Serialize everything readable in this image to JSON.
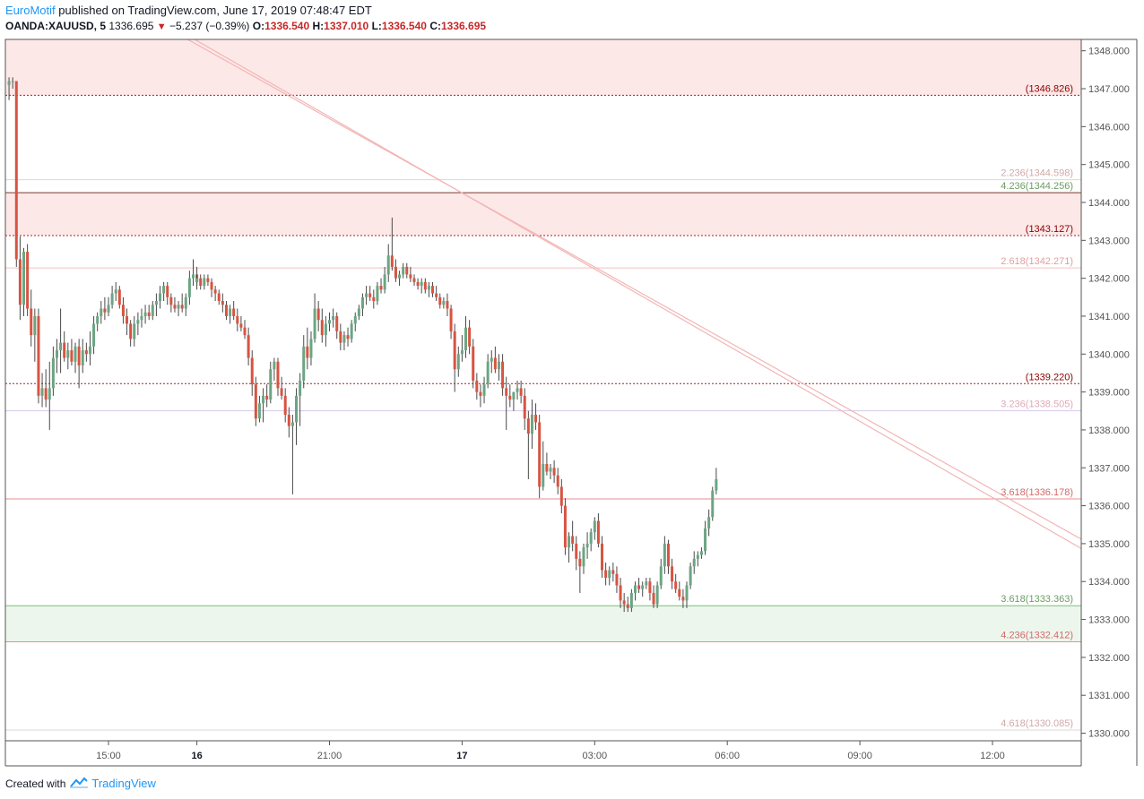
{
  "header": {
    "author": "EuroMotif",
    "published_text": " published on TradingView.com, June 17, 2019 07:48:47 EDT",
    "symbol": "OANDA:XAUUSD, 5",
    "last": "1336.695",
    "change_arrow": "▼",
    "change": "−5.237 (−0.39%)",
    "o_label": "O:",
    "o_value": "1336.540",
    "h_label": "H:",
    "h_value": "1337.010",
    "l_label": "L:",
    "l_value": "1336.540",
    "c_label": "C:",
    "c_value": "1336.695"
  },
  "footer": {
    "created_with": "Created with",
    "brand": "TradingView",
    "logo_icon": "tradingview-cloud-icon"
  },
  "colors": {
    "up": "#6ba583",
    "down": "#d75442",
    "resistance_zone": "#fde8e8",
    "support_zone": "#edf6ec",
    "dark_red": "#8b0000",
    "light_red": "#f2a7a7",
    "green": "#6b9e63",
    "trendline": "#f2b5b5",
    "axis": "#555555"
  },
  "chart_data": {
    "type": "candlestick",
    "instrument": "OANDA:XAUUSD",
    "timeframe": "5",
    "ylim": [
      1329.8,
      1348.3
    ],
    "y_ticks": [
      "1330.000",
      "1331.000",
      "1332.000",
      "1333.000",
      "1334.000",
      "1335.000",
      "1336.000",
      "1337.000",
      "1338.000",
      "1339.000",
      "1340.000",
      "1341.000",
      "1342.000",
      "1343.000",
      "1344.000",
      "1345.000",
      "1346.000",
      "1347.000",
      "1348.000"
    ],
    "x_tick_labels": [
      "15:00",
      "16",
      "21:00",
      "17",
      "03:00",
      "06:00",
      "09:00",
      "12:00"
    ],
    "x_ticks": [
      "2019-06-14 15:00",
      "2019-06-16 18:00",
      "2019-06-16 21:00",
      "2019-06-17 00:00",
      "2019-06-17 03:00",
      "2019-06-17 06:00",
      "2019-06-17 09:00",
      "2019-06-17 12:00"
    ],
    "x_tick_bold": [
      "16",
      "17"
    ],
    "candles_start": "2019-06-14 12:45",
    "candles_interval_min": 5,
    "candles_note": "sessions: Fri 14 Jun 12:45–17:00, Sun 16 Jun 18:00 onward",
    "candles": [
      [
        1347.1,
        1347.3,
        1346.7,
        1347.2
      ],
      [
        1347.2,
        1347.3,
        1347.0,
        1347.2
      ],
      [
        1347.2,
        1347.2,
        1342.3,
        1342.5
      ],
      [
        1342.5,
        1343.1,
        1340.9,
        1341.3
      ],
      [
        1341.3,
        1342.8,
        1341.0,
        1342.7
      ],
      [
        1342.7,
        1342.9,
        1341.0,
        1341.2
      ],
      [
        1341.2,
        1341.7,
        1340.2,
        1340.5
      ],
      [
        1340.5,
        1341.2,
        1339.8,
        1341.0
      ],
      [
        1341.0,
        1341.2,
        1338.7,
        1338.9
      ],
      [
        1338.9,
        1339.5,
        1338.6,
        1339.1
      ],
      [
        1339.1,
        1339.6,
        1338.6,
        1338.8
      ],
      [
        1338.8,
        1339.8,
        1338.0,
        1339.1
      ],
      [
        1339.1,
        1340.2,
        1338.9,
        1339.9
      ],
      [
        1339.9,
        1340.4,
        1339.5,
        1340.1
      ],
      [
        1340.1,
        1341.2,
        1339.5,
        1340.3
      ],
      [
        1340.3,
        1340.6,
        1339.8,
        1339.9
      ],
      [
        1339.9,
        1340.3,
        1339.6,
        1340.1
      ],
      [
        1340.1,
        1340.4,
        1339.7,
        1339.8
      ],
      [
        1339.8,
        1340.3,
        1339.5,
        1340.2
      ],
      [
        1340.2,
        1340.4,
        1339.1,
        1339.7
      ],
      [
        1339.7,
        1340.4,
        1339.5,
        1340.1
      ],
      [
        1340.1,
        1340.3,
        1339.8,
        1340.0
      ],
      [
        1340.0,
        1340.6,
        1339.7,
        1340.2
      ],
      [
        1340.2,
        1341.0,
        1340.0,
        1340.8
      ],
      [
        1340.8,
        1341.1,
        1340.6,
        1341.0
      ],
      [
        1341.0,
        1341.4,
        1340.8,
        1341.2
      ],
      [
        1341.2,
        1341.5,
        1340.9,
        1341.1
      ],
      [
        1341.1,
        1341.5,
        1341.0,
        1341.3
      ],
      [
        1341.3,
        1341.8,
        1341.2,
        1341.6
      ],
      [
        1341.6,
        1341.9,
        1341.4,
        1341.7
      ],
      [
        1341.7,
        1341.8,
        1341.2,
        1341.3
      ],
      [
        1341.3,
        1341.5,
        1340.8,
        1341.0
      ],
      [
        1341.0,
        1341.2,
        1340.5,
        1340.8
      ],
      [
        1340.8,
        1340.9,
        1340.2,
        1340.4
      ],
      [
        1340.4,
        1341.0,
        1340.2,
        1340.8
      ],
      [
        1340.8,
        1341.1,
        1340.5,
        1340.9
      ],
      [
        1340.9,
        1341.2,
        1340.7,
        1341.0
      ],
      [
        1341.0,
        1341.3,
        1340.8,
        1341.1
      ],
      [
        1341.1,
        1341.3,
        1340.9,
        1341.0
      ],
      [
        1341.0,
        1341.4,
        1340.9,
        1341.3
      ],
      [
        1341.3,
        1341.6,
        1341.0,
        1341.4
      ],
      [
        1341.4,
        1341.8,
        1341.2,
        1341.6
      ],
      [
        1341.6,
        1341.9,
        1341.4,
        1341.8
      ],
      [
        1341.8,
        1341.9,
        1341.3,
        1341.5
      ],
      [
        1341.5,
        1341.6,
        1341.1,
        1341.3
      ],
      [
        1341.3,
        1341.5,
        1341.1,
        1341.2
      ],
      [
        1341.2,
        1341.4,
        1341.0,
        1341.3
      ],
      [
        1341.3,
        1341.6,
        1341.1,
        1341.2
      ],
      [
        1341.2,
        1341.6,
        1341.0,
        1341.5
      ],
      [
        1341.5,
        1342.2,
        1341.3,
        1342.0
      ],
      [
        1342.0,
        1342.5,
        1341.8,
        1342.1
      ],
      [
        1342.1,
        1342.3,
        1341.7,
        1341.9
      ],
      [
        1341.9,
        1342.1,
        1341.8,
        1342.0
      ],
      [
        1342.0,
        1342.1,
        1341.7,
        1341.8
      ],
      [
        1341.8,
        1342.1,
        1341.7,
        1342.0
      ],
      [
        1342.0,
        1342.1,
        1341.8,
        1341.9
      ],
      [
        1341.9,
        1342.0,
        1341.5,
        1341.7
      ],
      [
        1341.7,
        1341.8,
        1341.4,
        1341.6
      ],
      [
        1341.6,
        1341.7,
        1341.3,
        1341.4
      ],
      [
        1341.4,
        1341.6,
        1341.1,
        1341.3
      ],
      [
        1341.3,
        1341.4,
        1340.9,
        1341.0
      ],
      [
        1341.0,
        1341.3,
        1340.8,
        1341.2
      ],
      [
        1341.2,
        1341.4,
        1340.9,
        1341.0
      ],
      [
        1341.0,
        1341.2,
        1340.6,
        1340.8
      ],
      [
        1340.8,
        1341.0,
        1340.6,
        1340.7
      ],
      [
        1340.7,
        1340.9,
        1340.4,
        1340.5
      ],
      [
        1340.5,
        1340.7,
        1339.7,
        1339.9
      ],
      [
        1339.9,
        1340.1,
        1338.9,
        1339.2
      ],
      [
        1339.2,
        1339.4,
        1338.1,
        1338.3
      ],
      [
        1338.3,
        1338.9,
        1338.2,
        1338.7
      ],
      [
        1338.7,
        1339.1,
        1338.2,
        1338.9
      ],
      [
        1338.9,
        1339.2,
        1338.6,
        1338.8
      ],
      [
        1338.8,
        1339.8,
        1338.7,
        1339.6
      ],
      [
        1339.6,
        1339.9,
        1339.3,
        1339.8
      ],
      [
        1339.8,
        1339.9,
        1338.9,
        1339.1
      ],
      [
        1339.1,
        1339.4,
        1338.8,
        1338.9
      ],
      [
        1338.9,
        1339.1,
        1338.2,
        1338.4
      ],
      [
        1338.4,
        1338.6,
        1337.8,
        1338.1
      ],
      [
        1338.1,
        1338.4,
        1336.3,
        1338.2
      ],
      [
        1338.2,
        1339.1,
        1337.6,
        1338.9
      ],
      [
        1338.9,
        1339.5,
        1338.1,
        1339.3
      ],
      [
        1339.3,
        1340.5,
        1339.1,
        1340.2
      ],
      [
        1340.2,
        1340.7,
        1339.6,
        1339.9
      ],
      [
        1339.9,
        1340.6,
        1339.7,
        1340.4
      ],
      [
        1340.4,
        1341.6,
        1340.3,
        1341.2
      ],
      [
        1341.2,
        1341.4,
        1340.6,
        1340.9
      ],
      [
        1340.9,
        1341.2,
        1340.3,
        1340.5
      ],
      [
        1340.5,
        1341.0,
        1340.2,
        1340.8
      ],
      [
        1340.8,
        1341.1,
        1340.6,
        1340.9
      ],
      [
        1340.9,
        1341.2,
        1340.7,
        1341.0
      ],
      [
        1341.0,
        1341.1,
        1340.4,
        1340.6
      ],
      [
        1340.6,
        1340.8,
        1340.1,
        1340.3
      ],
      [
        1340.3,
        1340.6,
        1340.1,
        1340.5
      ],
      [
        1340.5,
        1340.7,
        1340.2,
        1340.4
      ],
      [
        1340.4,
        1340.9,
        1340.3,
        1340.8
      ],
      [
        1340.8,
        1341.1,
        1340.6,
        1341.0
      ],
      [
        1341.0,
        1341.3,
        1340.9,
        1341.2
      ],
      [
        1341.2,
        1341.6,
        1341.0,
        1341.5
      ],
      [
        1341.5,
        1341.8,
        1341.3,
        1341.6
      ],
      [
        1341.6,
        1341.8,
        1341.4,
        1341.5
      ],
      [
        1341.5,
        1341.7,
        1341.2,
        1341.4
      ],
      [
        1341.4,
        1341.9,
        1341.3,
        1341.8
      ],
      [
        1341.8,
        1342.0,
        1341.6,
        1341.7
      ],
      [
        1341.7,
        1342.3,
        1341.6,
        1342.1
      ],
      [
        1342.1,
        1342.9,
        1341.9,
        1342.6
      ],
      [
        1342.6,
        1343.6,
        1342.2,
        1342.3
      ],
      [
        1342.3,
        1342.5,
        1341.9,
        1342.0
      ],
      [
        1342.0,
        1342.2,
        1341.8,
        1342.1
      ],
      [
        1342.1,
        1342.4,
        1342.0,
        1342.3
      ],
      [
        1342.3,
        1342.4,
        1342.0,
        1342.1
      ],
      [
        1342.1,
        1342.3,
        1341.9,
        1342.0
      ],
      [
        1342.0,
        1342.1,
        1341.8,
        1341.9
      ],
      [
        1341.9,
        1342.0,
        1341.7,
        1341.8
      ],
      [
        1341.8,
        1342.0,
        1341.6,
        1341.9
      ],
      [
        1341.9,
        1342.0,
        1341.6,
        1341.7
      ],
      [
        1341.7,
        1341.9,
        1341.5,
        1341.8
      ],
      [
        1341.8,
        1341.9,
        1341.5,
        1341.6
      ],
      [
        1341.6,
        1341.8,
        1341.4,
        1341.5
      ],
      [
        1341.5,
        1341.6,
        1341.2,
        1341.3
      ],
      [
        1341.3,
        1341.5,
        1341.2,
        1341.4
      ],
      [
        1341.4,
        1341.6,
        1341.0,
        1341.2
      ],
      [
        1341.2,
        1341.3,
        1340.4,
        1340.6
      ],
      [
        1340.6,
        1340.8,
        1339.0,
        1339.6
      ],
      [
        1339.6,
        1340.2,
        1339.4,
        1340.0
      ],
      [
        1340.0,
        1340.5,
        1339.8,
        1340.1
      ],
      [
        1340.1,
        1341.0,
        1339.9,
        1340.7
      ],
      [
        1340.7,
        1340.9,
        1340.0,
        1340.2
      ],
      [
        1340.2,
        1340.4,
        1339.1,
        1339.3
      ],
      [
        1339.3,
        1339.5,
        1338.8,
        1339.0
      ],
      [
        1339.0,
        1339.2,
        1338.6,
        1338.9
      ],
      [
        1338.9,
        1339.4,
        1338.7,
        1339.2
      ],
      [
        1339.2,
        1340.0,
        1339.1,
        1339.8
      ],
      [
        1339.8,
        1340.1,
        1339.5,
        1339.9
      ],
      [
        1339.9,
        1340.2,
        1339.5,
        1339.6
      ],
      [
        1339.6,
        1340.0,
        1339.3,
        1339.8
      ],
      [
        1339.8,
        1340.0,
        1338.9,
        1339.1
      ],
      [
        1339.1,
        1339.4,
        1338.0,
        1338.9
      ],
      [
        1338.9,
        1339.2,
        1338.6,
        1338.8
      ],
      [
        1338.8,
        1339.0,
        1338.5,
        1339.0
      ],
      [
        1339.0,
        1339.3,
        1338.8,
        1339.1
      ],
      [
        1339.1,
        1339.3,
        1338.7,
        1338.9
      ],
      [
        1338.9,
        1339.1,
        1338.0,
        1338.3
      ],
      [
        1338.3,
        1338.5,
        1336.7,
        1337.9
      ],
      [
        1337.9,
        1338.8,
        1337.5,
        1338.4
      ],
      [
        1338.4,
        1338.7,
        1338.0,
        1338.2
      ],
      [
        1338.2,
        1338.4,
        1336.2,
        1336.5
      ],
      [
        1336.5,
        1337.7,
        1336.4,
        1337.1
      ],
      [
        1337.1,
        1337.4,
        1336.8,
        1336.9
      ],
      [
        1336.9,
        1337.1,
        1336.7,
        1337.0
      ],
      [
        1337.0,
        1337.2,
        1336.6,
        1336.8
      ],
      [
        1336.8,
        1337.0,
        1336.3,
        1336.5
      ],
      [
        1336.5,
        1336.7,
        1335.8,
        1336.0
      ],
      [
        1336.0,
        1336.2,
        1334.7,
        1334.9
      ],
      [
        1334.9,
        1335.3,
        1334.5,
        1335.2
      ],
      [
        1335.2,
        1335.6,
        1334.8,
        1335.0
      ],
      [
        1335.0,
        1335.2,
        1334.3,
        1334.6
      ],
      [
        1334.6,
        1334.8,
        1333.7,
        1334.4
      ],
      [
        1334.4,
        1335.0,
        1334.2,
        1334.9
      ],
      [
        1334.9,
        1335.3,
        1334.6,
        1335.0
      ],
      [
        1335.0,
        1335.4,
        1334.8,
        1335.3
      ],
      [
        1335.3,
        1335.7,
        1335.1,
        1335.6
      ],
      [
        1335.6,
        1335.8,
        1334.9,
        1335.0
      ],
      [
        1335.0,
        1335.2,
        1334.1,
        1334.3
      ],
      [
        1334.3,
        1334.5,
        1333.9,
        1334.1
      ],
      [
        1334.1,
        1334.4,
        1333.9,
        1334.3
      ],
      [
        1334.3,
        1334.5,
        1334.0,
        1334.2
      ],
      [
        1334.2,
        1334.4,
        1333.7,
        1333.9
      ],
      [
        1333.9,
        1334.1,
        1333.3,
        1333.5
      ],
      [
        1333.5,
        1333.7,
        1333.2,
        1333.4
      ],
      [
        1333.4,
        1333.6,
        1333.2,
        1333.3
      ],
      [
        1333.3,
        1333.8,
        1333.2,
        1333.7
      ],
      [
        1333.7,
        1334.0,
        1333.5,
        1333.9
      ],
      [
        1333.9,
        1334.1,
        1333.7,
        1333.8
      ],
      [
        1333.8,
        1334.0,
        1333.6,
        1333.9
      ],
      [
        1333.9,
        1334.1,
        1333.8,
        1334.0
      ],
      [
        1334.0,
        1334.1,
        1333.5,
        1333.7
      ],
      [
        1333.7,
        1333.9,
        1333.3,
        1333.4
      ],
      [
        1333.4,
        1334.0,
        1333.3,
        1333.9
      ],
      [
        1333.9,
        1334.6,
        1333.8,
        1334.4
      ],
      [
        1334.4,
        1335.2,
        1334.2,
        1335.0
      ],
      [
        1335.0,
        1335.1,
        1334.2,
        1334.4
      ],
      [
        1334.4,
        1334.6,
        1333.8,
        1334.0
      ],
      [
        1334.0,
        1334.2,
        1333.7,
        1333.8
      ],
      [
        1333.8,
        1334.0,
        1333.5,
        1333.6
      ],
      [
        1333.6,
        1333.8,
        1333.3,
        1333.5
      ],
      [
        1333.5,
        1334.0,
        1333.3,
        1333.9
      ],
      [
        1333.9,
        1334.5,
        1333.8,
        1334.4
      ],
      [
        1334.4,
        1334.8,
        1334.2,
        1334.6
      ],
      [
        1334.6,
        1334.8,
        1334.4,
        1334.7
      ],
      [
        1334.7,
        1334.9,
        1334.6,
        1334.8
      ],
      [
        1334.8,
        1335.6,
        1334.7,
        1335.4
      ],
      [
        1335.4,
        1335.9,
        1335.2,
        1335.7
      ],
      [
        1335.7,
        1336.5,
        1335.6,
        1336.4
      ],
      [
        1336.4,
        1337.0,
        1336.3,
        1336.7
      ]
    ],
    "zones": [
      {
        "kind": "resistance",
        "from": 1346.826,
        "to": 1348.3
      },
      {
        "kind": "resistance",
        "from": 1343.127,
        "to": 1344.256
      },
      {
        "kind": "support",
        "from": 1332.412,
        "to": 1333.363
      }
    ],
    "levels": [
      {
        "value": 1346.826,
        "label": "(1346.826)",
        "style": "dotted",
        "color": "dark_red"
      },
      {
        "value": 1344.598,
        "label": "2.236(1344.598)",
        "style": "solid",
        "color": "faint"
      },
      {
        "value": 1344.256,
        "label": "4.236(1344.256)",
        "style": "solid",
        "color": "brown",
        "label_value_color": "dark_red"
      },
      {
        "value": 1343.127,
        "label": "(1343.127)",
        "style": "dotted",
        "color": "dark_red"
      },
      {
        "value": 1342.271,
        "label": "2.618(1342.271)",
        "style": "solid",
        "color": "faint_red"
      },
      {
        "value": 1339.22,
        "label": "(1339.220)",
        "style": "dotted",
        "color": "dark_red"
      },
      {
        "value": 1338.505,
        "label": "3.236(1338.505)",
        "style": "solid",
        "color": "lavender"
      },
      {
        "value": 1336.178,
        "label": "3.618(1336.178)",
        "style": "solid",
        "color": "red"
      },
      {
        "value": 1333.363,
        "label": "3.618(1333.363)",
        "style": "solid",
        "color": "green"
      },
      {
        "value": 1332.412,
        "label": "4.236(1332.412)",
        "style": "solid",
        "color": "red"
      },
      {
        "value": 1330.085,
        "label": "4.618(1330.085)",
        "style": "solid",
        "color": "faint"
      }
    ],
    "trendlines": [
      {
        "from": [
          "2019-06-14 16:30",
          1348.6
        ],
        "to": [
          "2019-06-17 14:25",
          1334.6
        ]
      },
      {
        "from": [
          "2019-06-14 16:20",
          1348.6
        ],
        "to": [
          "2019-06-17 14:25",
          1334.85
        ]
      }
    ]
  }
}
